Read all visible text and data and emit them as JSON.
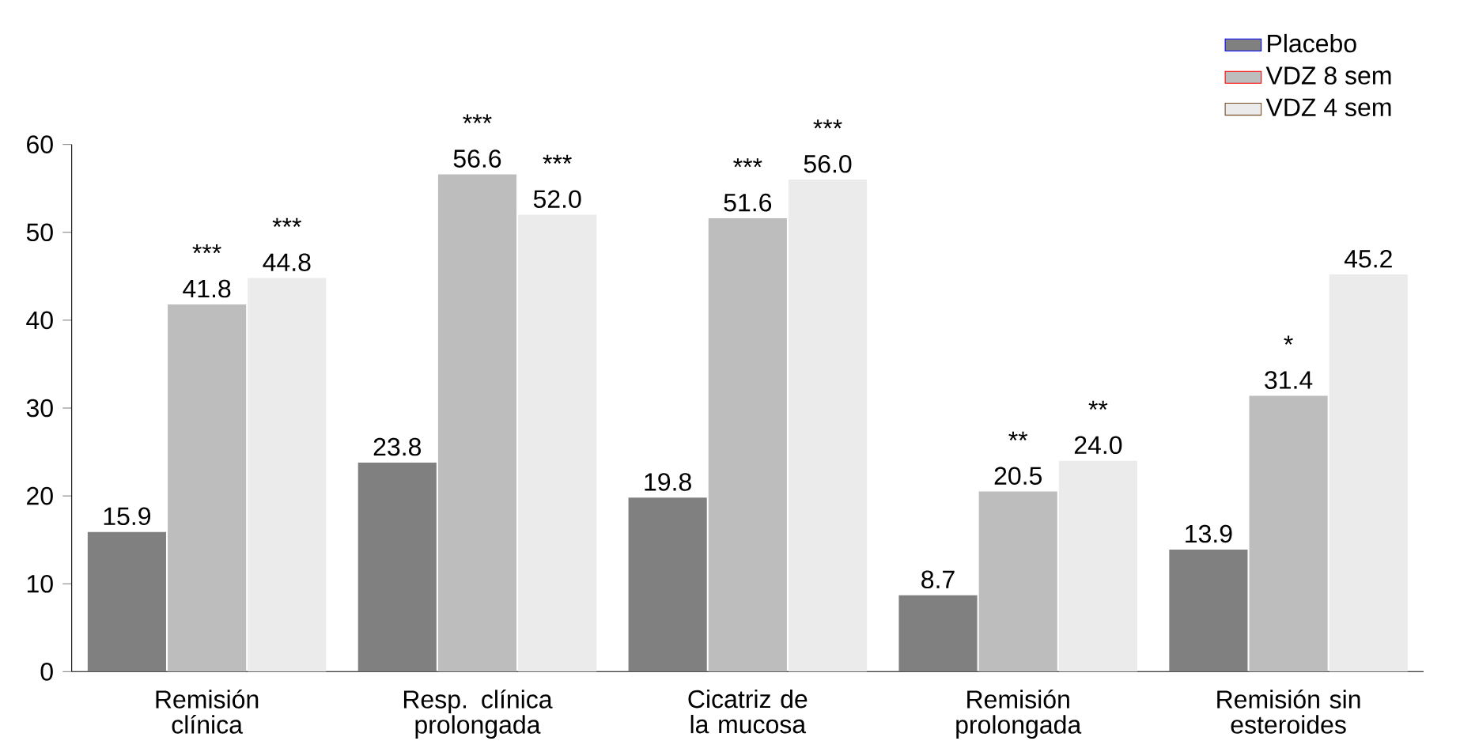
{
  "chart_data": {
    "type": "bar",
    "categories": [
      "Remisión clínica",
      "Resp. clínica prolongada",
      "Cicatriz de la mucosa",
      "Remisión prolongada",
      "Remisión sin esteroides"
    ],
    "series": [
      {
        "name": "Placebo",
        "color": "#808080",
        "values": [
          15.9,
          23.8,
          19.8,
          8.7,
          13.9
        ],
        "value_labels": [
          "15.9",
          "23.8",
          "19.8",
          "8.7",
          "13.9"
        ]
      },
      {
        "name": "VDZ 8 sem",
        "color": "#bdbdbd",
        "values": [
          41.8,
          56.6,
          51.6,
          20.5,
          31.4
        ],
        "value_labels": [
          "41.8",
          "56.6",
          "51.6",
          "20.5",
          "31.4"
        ]
      },
      {
        "name": "VDZ 4 sem",
        "color": "#ebebeb",
        "values": [
          44.8,
          52.0,
          56.0,
          24.0,
          45.2
        ],
        "value_labels": [
          "44.8",
          "52.0",
          "56.0",
          "24.0",
          "45.2"
        ]
      }
    ],
    "annotations": [
      {
        "text": "***",
        "x": "Remisión clínica",
        "y": 41.8
      },
      {
        "text": "***",
        "y": 44.8
      },
      {
        "text": "***",
        "x": "Resp. clínica prolongada",
        "y": 56.6
      },
      {
        "text": "***",
        "y": 52.0
      },
      {
        "text": "***",
        "x": "Cicatriz de la mucosa",
        "y": 51.6
      },
      {
        "text": "***",
        "y": 56.0
      },
      {
        "text": "**",
        "x": "Remisión prolongada",
        "y": 20.5
      },
      {
        "text": "**",
        "y": 24.0
      },
      {
        "text": "*",
        "x": "Remisión sin esteroides",
        "y": 31.4
      }
    ],
    "ylim": [
      0,
      60
    ],
    "yticks": [
      0,
      10,
      20,
      30,
      40,
      50,
      60
    ],
    "legend": "top right"
  }
}
